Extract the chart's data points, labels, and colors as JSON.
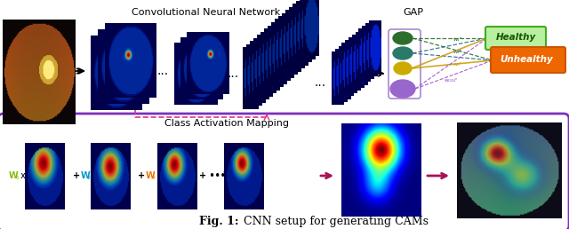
{
  "title_bold": "Fig. 1:",
  "title_normal": " CNN setup for generating CAMs",
  "top_label_cnn": "Convolutional Neural Network",
  "top_label_gap": "GAP",
  "bottom_label_cam": "Class Activation Mapping",
  "label_healthy": "Healthy",
  "label_unhealthy": "Unhealthy",
  "bg_color": "#ffffff",
  "bottom_border_color": "#7b2fbe",
  "dark_pink_arrow": "#aa1155",
  "healthy_bg": "#b8f0a0",
  "unhealthy_bg": "#ee6600",
  "healthy_text": "#226600",
  "node_colors": [
    "#2d6e2d",
    "#2a7a6a",
    "#ccaa00",
    "#9966cc"
  ],
  "w1_color": "#88bb00",
  "w2_color": "#0099cc",
  "w3_color": "#ee7700",
  "w2024_color": "#bb44bb",
  "figsize": [
    6.4,
    2.58
  ],
  "dpi": 100
}
